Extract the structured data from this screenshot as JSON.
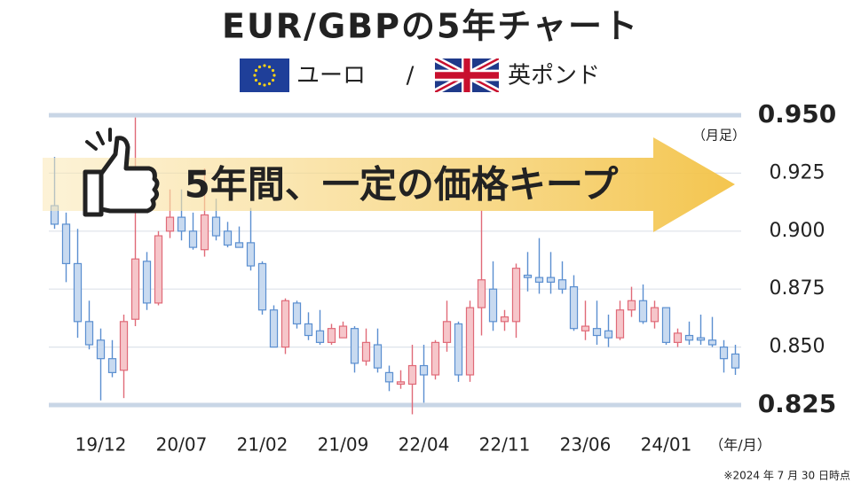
{
  "chart_data": {
    "type": "candlestick",
    "title": "EUR/GBPの5年チャート",
    "currency_left": "ユーロ",
    "separator": "/",
    "currency_right": "英ポンド",
    "banner": "5年間、一定の価格キープ",
    "period_label": "（月足）",
    "x_unit_label": "（年/月）",
    "note": "※2024 年 7 月 30 日時点",
    "up_color": "#e06a78",
    "up_fill": "#f6c6ca",
    "down_color": "#5b8fd0",
    "down_fill": "#c8daf0",
    "categories": [
      null,
      null,
      null,
      null,
      "19/12",
      null,
      null,
      null,
      null,
      null,
      null,
      "20/07",
      null,
      null,
      null,
      null,
      null,
      null,
      "21/02",
      null,
      null,
      null,
      null,
      null,
      null,
      "21/09",
      null,
      null,
      null,
      null,
      null,
      null,
      "22/04",
      null,
      null,
      null,
      null,
      null,
      null,
      "22/11",
      null,
      null,
      null,
      null,
      null,
      null,
      "23/06",
      null,
      null,
      null,
      null,
      null,
      null,
      "24/01",
      null,
      null,
      null,
      null,
      null,
      null
    ],
    "open": [
      0.911,
      0.903,
      0.886,
      0.861,
      0.853,
      0.845,
      0.84,
      0.862,
      0.887,
      0.869,
      0.9,
      0.906,
      0.9,
      0.892,
      0.906,
      0.9,
      0.895,
      0.895,
      0.886,
      0.866,
      0.85,
      0.869,
      0.86,
      0.857,
      0.852,
      0.854,
      0.858,
      0.844,
      0.851,
      0.839,
      0.834,
      0.834,
      0.842,
      0.838,
      0.852,
      0.86,
      0.838,
      0.867,
      0.875,
      0.861,
      0.861,
      0.881,
      0.88,
      0.88,
      0.879,
      0.876,
      0.857,
      0.858,
      0.857,
      0.854,
      0.866,
      0.87,
      0.861,
      0.867,
      0.852,
      0.855,
      0.854,
      0.853,
      0.85,
      0.847
    ],
    "high": [
      0.932,
      0.908,
      0.901,
      0.87,
      0.858,
      0.853,
      0.864,
      0.949,
      0.891,
      0.9,
      0.918,
      0.918,
      0.908,
      0.927,
      0.914,
      0.904,
      0.902,
      0.91,
      0.887,
      0.868,
      0.871,
      0.87,
      0.865,
      0.866,
      0.86,
      0.861,
      0.859,
      0.858,
      0.858,
      0.842,
      0.84,
      0.851,
      0.851,
      0.853,
      0.87,
      0.861,
      0.87,
      0.909,
      0.887,
      0.866,
      0.886,
      0.891,
      0.897,
      0.891,
      0.887,
      0.881,
      0.87,
      0.87,
      0.864,
      0.87,
      0.876,
      0.877,
      0.87,
      0.867,
      0.858,
      0.861,
      0.864,
      0.863,
      0.853,
      0.851
    ],
    "low": [
      0.901,
      0.878,
      0.854,
      0.849,
      0.827,
      0.837,
      0.828,
      0.859,
      0.866,
      0.868,
      0.897,
      0.896,
      0.892,
      0.889,
      0.896,
      0.893,
      0.893,
      0.883,
      0.864,
      0.85,
      0.847,
      0.858,
      0.853,
      0.851,
      0.851,
      0.854,
      0.839,
      0.842,
      0.839,
      0.831,
      0.832,
      0.821,
      0.826,
      0.836,
      0.848,
      0.835,
      0.835,
      0.855,
      0.857,
      0.857,
      0.854,
      0.874,
      0.873,
      0.873,
      0.873,
      0.857,
      0.853,
      0.851,
      0.85,
      0.853,
      0.863,
      0.86,
      0.858,
      0.851,
      0.85,
      0.851,
      0.851,
      0.85,
      0.839,
      0.838
    ],
    "close": [
      0.903,
      0.886,
      0.861,
      0.851,
      0.845,
      0.839,
      0.861,
      0.888,
      0.869,
      0.898,
      0.906,
      0.9,
      0.893,
      0.907,
      0.898,
      0.894,
      0.893,
      0.885,
      0.866,
      0.85,
      0.87,
      0.86,
      0.855,
      0.852,
      0.858,
      0.859,
      0.843,
      0.852,
      0.841,
      0.835,
      0.835,
      0.842,
      0.838,
      0.852,
      0.861,
      0.838,
      0.867,
      0.879,
      0.861,
      0.863,
      0.884,
      0.88,
      0.878,
      0.878,
      0.875,
      0.858,
      0.859,
      0.855,
      0.854,
      0.866,
      0.87,
      0.861,
      0.867,
      0.852,
      0.856,
      0.853,
      0.853,
      0.851,
      0.845,
      0.841
    ],
    "ylim": [
      0.825,
      0.95
    ],
    "yticks": [
      {
        "value": 0.95,
        "label": "0.950"
      },
      {
        "value": 0.925,
        "label": "0.925"
      },
      {
        "value": 0.9,
        "label": "0.900"
      },
      {
        "value": 0.875,
        "label": "0.875"
      },
      {
        "value": 0.85,
        "label": "0.850"
      },
      {
        "value": 0.825,
        "label": "0.825"
      }
    ],
    "grid": true
  }
}
